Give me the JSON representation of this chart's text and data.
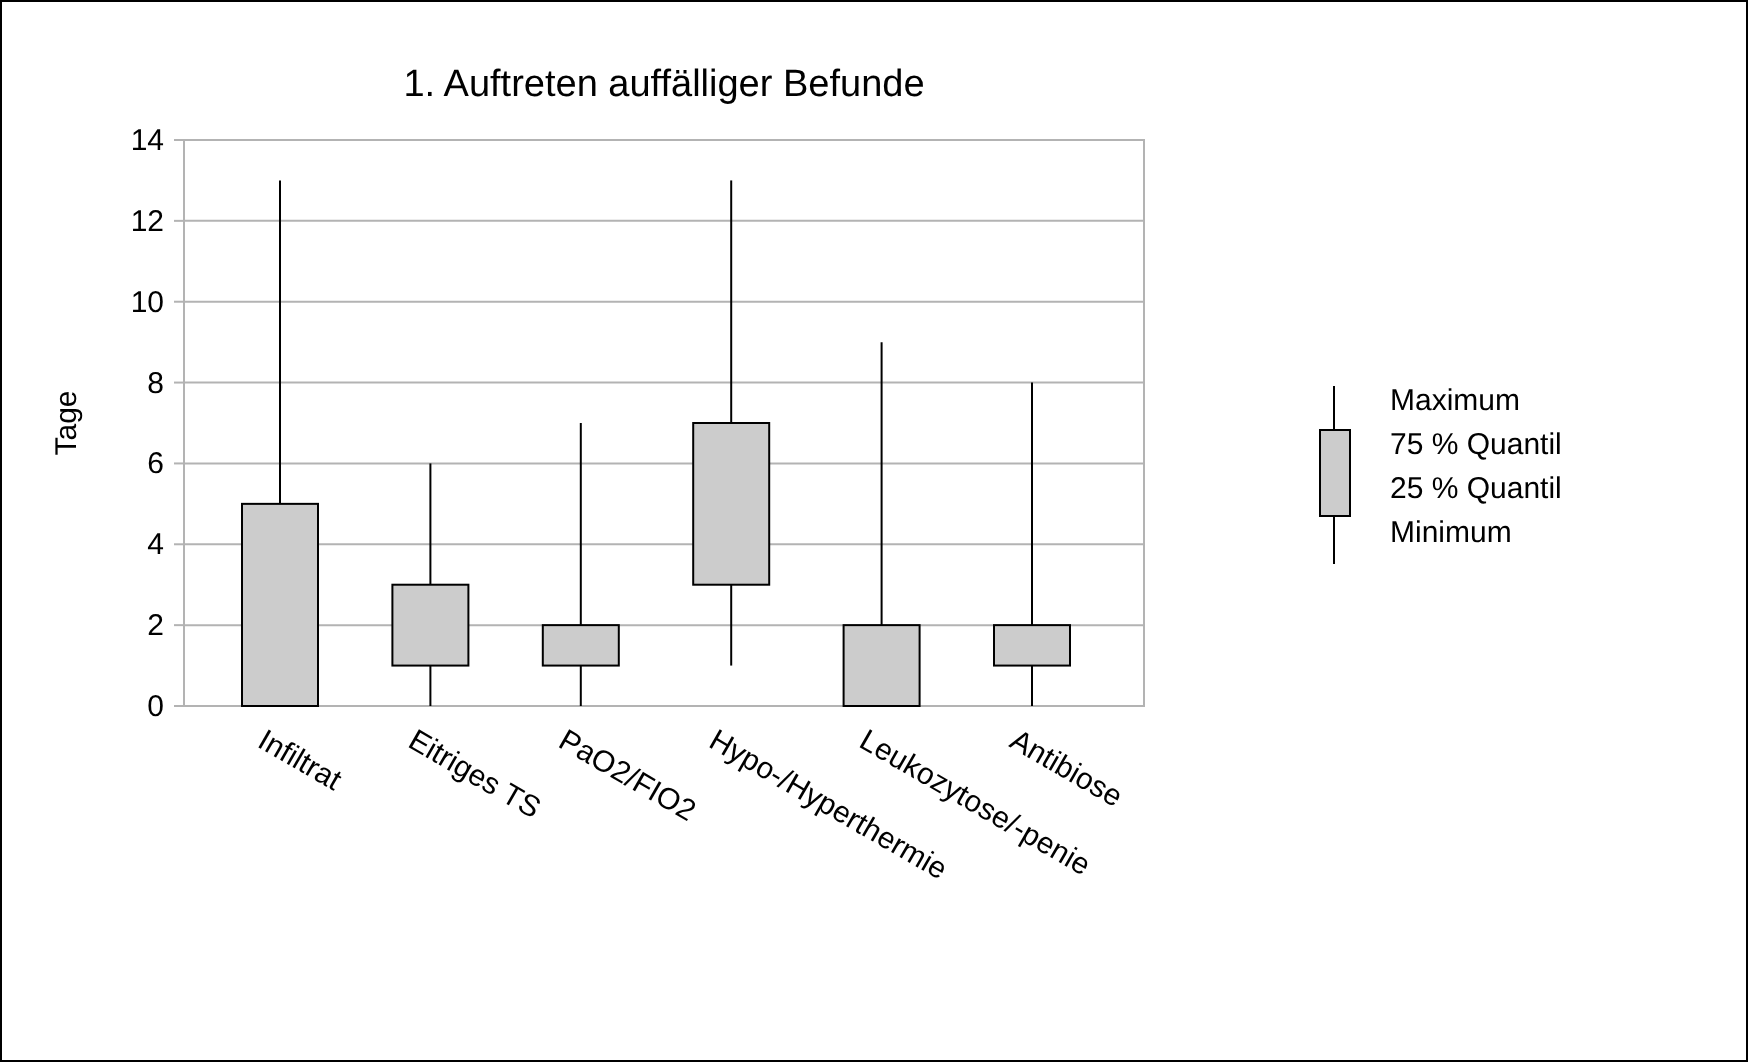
{
  "chart_data": {
    "type": "box",
    "title": "1. Auftreten auffälliger Befunde",
    "ylabel": "Tage",
    "categories": [
      "Infiltrat",
      "Eitriges TS",
      "PaO2/FIO2",
      "Hypo-/Hyperthermie",
      "Leukozytose/-penie",
      "Antibiose"
    ],
    "boxes": [
      {
        "low": 0,
        "q1": 0,
        "q3": 5,
        "high": 13
      },
      {
        "low": 0,
        "q1": 1,
        "q3": 3,
        "high": 6
      },
      {
        "low": 0,
        "q1": 1,
        "q3": 2,
        "high": 7
      },
      {
        "low": 1,
        "q1": 3,
        "q3": 7,
        "high": 13
      },
      {
        "low": 0,
        "q1": 0,
        "q3": 2,
        "high": 9
      },
      {
        "low": 0,
        "q1": 1,
        "q3": 2,
        "high": 8
      }
    ],
    "color": "#cccccc",
    "ylim": [
      0,
      14
    ],
    "yticks": [
      0,
      2,
      4,
      6,
      8,
      10,
      12,
      14
    ],
    "grid": "y",
    "annotations": [
      "Maximum",
      "75 % Quantil",
      "25 % Quantil",
      "Minimum"
    ]
  }
}
